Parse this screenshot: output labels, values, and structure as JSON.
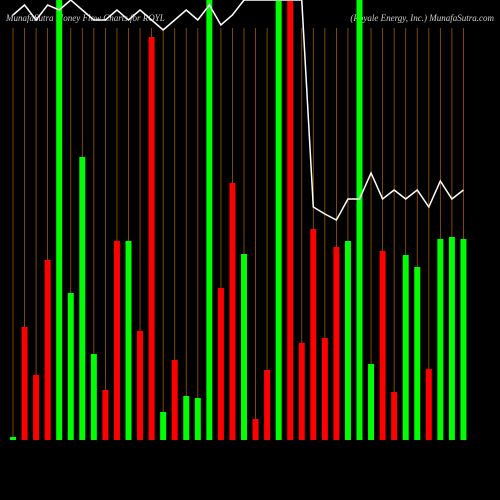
{
  "chart_data": {
    "type": "bar",
    "title": "MunafaSutra  Money Flow  Charts for ROYL",
    "subtitle": "(Royale Energy, Inc.) MunafaSutra.com",
    "categories": [
      null,
      null,
      null,
      null,
      null,
      null,
      null,
      null,
      null,
      null,
      null,
      null,
      null,
      null,
      null,
      null,
      null,
      null,
      null,
      null,
      null,
      null,
      null,
      null,
      null,
      null,
      null,
      null,
      null,
      null,
      null,
      null,
      null,
      null,
      null,
      null,
      null,
      null,
      null,
      null
    ],
    "values": [
      3,
      113,
      65,
      180,
      440,
      147,
      283,
      86,
      50,
      199,
      199,
      109,
      403,
      28,
      80,
      44,
      42,
      440,
      152,
      257,
      186,
      21,
      70,
      440,
      440,
      97,
      211,
      102,
      193,
      199,
      440,
      76,
      189,
      48,
      185,
      173,
      71,
      201,
      203,
      201
    ],
    "colors": [
      "#00ff00",
      "#ff0000",
      "#ff0000",
      "#ff0000",
      "#00ff00",
      "#00ff00",
      "#00ff00",
      "#00ff00",
      "#ff0000",
      "#ff0000",
      "#00ff00",
      "#ff0000",
      "#ff0000",
      "#00ff00",
      "#ff0000",
      "#00ff00",
      "#00ff00",
      "#00ff00",
      "#ff0000",
      "#ff0000",
      "#00ff00",
      "#ff0000",
      "#ff0000",
      "#00ff00",
      "#ff0000",
      "#ff0000",
      "#ff0000",
      "#ff0000",
      "#ff0000",
      "#00ff00",
      "#00ff00",
      "#00ff00",
      "#ff0000",
      "#ff0000",
      "#00ff00",
      "#00ff00",
      "#ff0000",
      "#00ff00",
      "#00ff00",
      "#00ff00"
    ],
    "line": {
      "color": "#ffffff",
      "values": [
        425,
        435,
        420,
        435,
        430,
        440,
        430,
        420,
        420,
        430,
        420,
        430,
        420,
        410,
        420,
        430,
        420,
        435,
        415,
        425,
        440,
        440,
        440,
        440,
        440,
        440,
        233,
        226,
        220,
        241,
        241,
        267,
        241,
        250,
        241,
        250,
        233,
        259,
        241,
        250
      ]
    },
    "ylim": [
      0,
      440
    ]
  }
}
